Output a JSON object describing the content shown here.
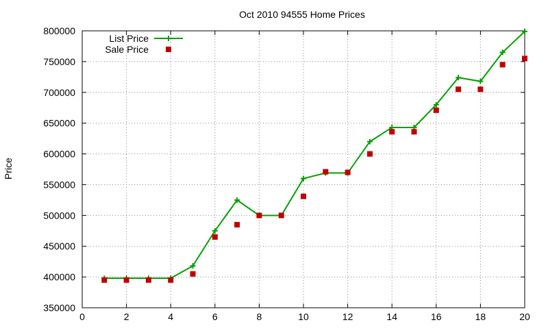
{
  "chart_data": {
    "type": "line",
    "title": "Oct 2010 94555 Home Prices",
    "xlabel": "",
    "ylabel": "Price",
    "xlim": [
      0,
      20
    ],
    "ylim": [
      350000,
      800000
    ],
    "xticks": [
      0,
      2,
      4,
      6,
      8,
      10,
      12,
      14,
      16,
      18,
      20
    ],
    "yticks": [
      350000,
      400000,
      450000,
      500000,
      550000,
      600000,
      650000,
      700000,
      750000,
      800000
    ],
    "grid": true,
    "legend_position": "top-left",
    "series": [
      {
        "name": "List Price",
        "style": "line-with-plus-markers",
        "color": "#00a000",
        "x": [
          1,
          2,
          3,
          4,
          5,
          6,
          7,
          8,
          9,
          10,
          11,
          12,
          13,
          14,
          15,
          16,
          17,
          18,
          19,
          20
        ],
        "y": [
          398000,
          398000,
          398000,
          398000,
          418000,
          475000,
          525000,
          500000,
          500000,
          560000,
          569000,
          569000,
          620000,
          643000,
          643000,
          680000,
          724000,
          718000,
          765000,
          799000
        ]
      },
      {
        "name": "Sale Price",
        "style": "square-markers",
        "color": "#c00000",
        "x": [
          1,
          2,
          3,
          4,
          5,
          6,
          7,
          8,
          9,
          10,
          11,
          12,
          13,
          14,
          15,
          16,
          17,
          18,
          19,
          20
        ],
        "y": [
          395000,
          395000,
          395000,
          395000,
          405000,
          465000,
          485000,
          500000,
          500000,
          531000,
          571000,
          570000,
          600000,
          636000,
          636000,
          671000,
          705000,
          705000,
          745000,
          755000
        ]
      }
    ]
  }
}
